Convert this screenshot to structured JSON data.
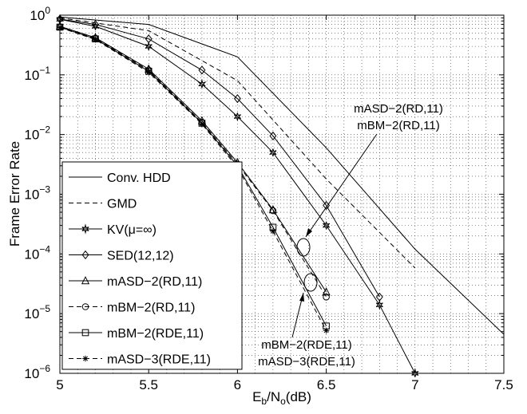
{
  "chart_data": {
    "type": "line",
    "xlabel_parts": {
      "base": "E",
      "sub1": "b",
      "mid": "/N",
      "sub2": "o",
      "tail": "(dB)"
    },
    "ylabel": "Frame Error Rate",
    "xlim": [
      5,
      7.5
    ],
    "ylim": [
      1e-06,
      1
    ],
    "yscale": "log",
    "grid": "dotted-major-minor",
    "legend_position": "lower-left",
    "x_ticks": [
      5,
      5.5,
      6,
      6.5,
      7,
      7.5
    ],
    "x_tick_labels": [
      "5",
      "5.5",
      "6",
      "6.5",
      "7",
      "7.5"
    ],
    "y_tick_exponents": [
      0,
      -1,
      -2,
      -3,
      -4,
      -5,
      -6
    ],
    "y_tick_base": "10",
    "series": [
      {
        "name": "Conv. HDD",
        "line": "solid",
        "marker": "none",
        "x": [
          5,
          5.5,
          6,
          6.5,
          7,
          7.5
        ],
        "y": [
          0.93,
          0.7,
          0.2,
          0.006,
          0.00012,
          4.5e-06
        ]
      },
      {
        "name": "GMD",
        "line": "dashed",
        "marker": "none",
        "x": [
          5,
          5.5,
          6,
          6.5,
          7
        ],
        "y": [
          0.9,
          0.55,
          0.08,
          0.0018,
          5.8e-05
        ]
      },
      {
        "name": "KV(μ=∞)",
        "line": "solid",
        "marker": "hexstar",
        "x": [
          5,
          5.2,
          5.5,
          5.8,
          6,
          6.2,
          6.5,
          6.8,
          7
        ],
        "y": [
          0.85,
          0.65,
          0.3,
          0.07,
          0.02,
          0.005,
          0.0003,
          1.4e-05,
          1e-06
        ]
      },
      {
        "name": "SED(12,12)",
        "line": "solid",
        "marker": "diamond",
        "x": [
          5,
          5.2,
          5.5,
          5.8,
          6,
          6.2,
          6.5,
          6.8
        ],
        "y": [
          0.86,
          0.7,
          0.4,
          0.12,
          0.04,
          0.0095,
          0.00065,
          1.9e-05
        ]
      },
      {
        "name": "mASD−2(RD,11)",
        "line": "solid",
        "marker": "triangle",
        "x": [
          5,
          5.2,
          5.5,
          5.8,
          6,
          6.2,
          6.5
        ],
        "y": [
          0.65,
          0.42,
          0.125,
          0.017,
          0.0034,
          0.00055,
          2.3e-05
        ]
      },
      {
        "name": "mBM−2(RD,11)",
        "line": "dashed",
        "marker": "circle",
        "x": [
          5,
          5.2,
          5.5,
          5.8,
          6,
          6.2,
          6.5
        ],
        "y": [
          0.64,
          0.41,
          0.12,
          0.016,
          0.0032,
          0.00053,
          1.9e-05
        ]
      },
      {
        "name": "mBM−2(RDE,11)",
        "line": "solid",
        "marker": "square",
        "x": [
          5,
          5.2,
          5.5,
          5.8,
          6,
          6.2,
          6.5
        ],
        "y": [
          0.63,
          0.4,
          0.115,
          0.0155,
          0.003,
          0.00028,
          6.2e-06
        ]
      },
      {
        "name": "mASD−3(RDE,11)",
        "line": "dashed",
        "marker": "asterisk",
        "x": [
          5,
          5.2,
          5.5,
          5.8,
          6,
          6.2,
          6.5
        ],
        "y": [
          0.62,
          0.39,
          0.11,
          0.015,
          0.0028,
          0.00024,
          5.2e-06
        ]
      }
    ],
    "annotations": [
      {
        "lines": [
          "mASD−2(RD,11)",
          "mBM−2(RD,11)"
        ],
        "target_x": 6.24,
        "target_y": 0.00013
      },
      {
        "lines": [
          "mBM−2(RDE,11)",
          "mASD−3(RDE,11)"
        ],
        "target_x": 6.18,
        "target_y": 3.3e-05
      }
    ]
  }
}
